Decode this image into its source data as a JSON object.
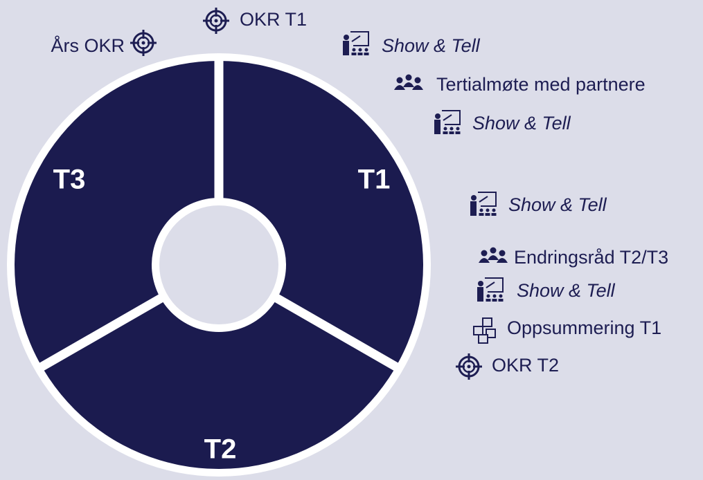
{
  "segments": [
    {
      "label": "T1"
    },
    {
      "label": "T2"
    },
    {
      "label": "T3"
    }
  ],
  "events": [
    {
      "text": "OKR T1"
    },
    {
      "text": "Års OKR"
    },
    {
      "text": "Show & Tell"
    },
    {
      "text": "Tertialmøte med partnere"
    },
    {
      "text": "Show & Tell"
    },
    {
      "text": "Show & Tell"
    },
    {
      "text": "Endringsråd T2/T3"
    },
    {
      "text": "Show & Tell"
    },
    {
      "text": "Oppsummering T1"
    },
    {
      "text": "OKR T2"
    }
  ]
}
